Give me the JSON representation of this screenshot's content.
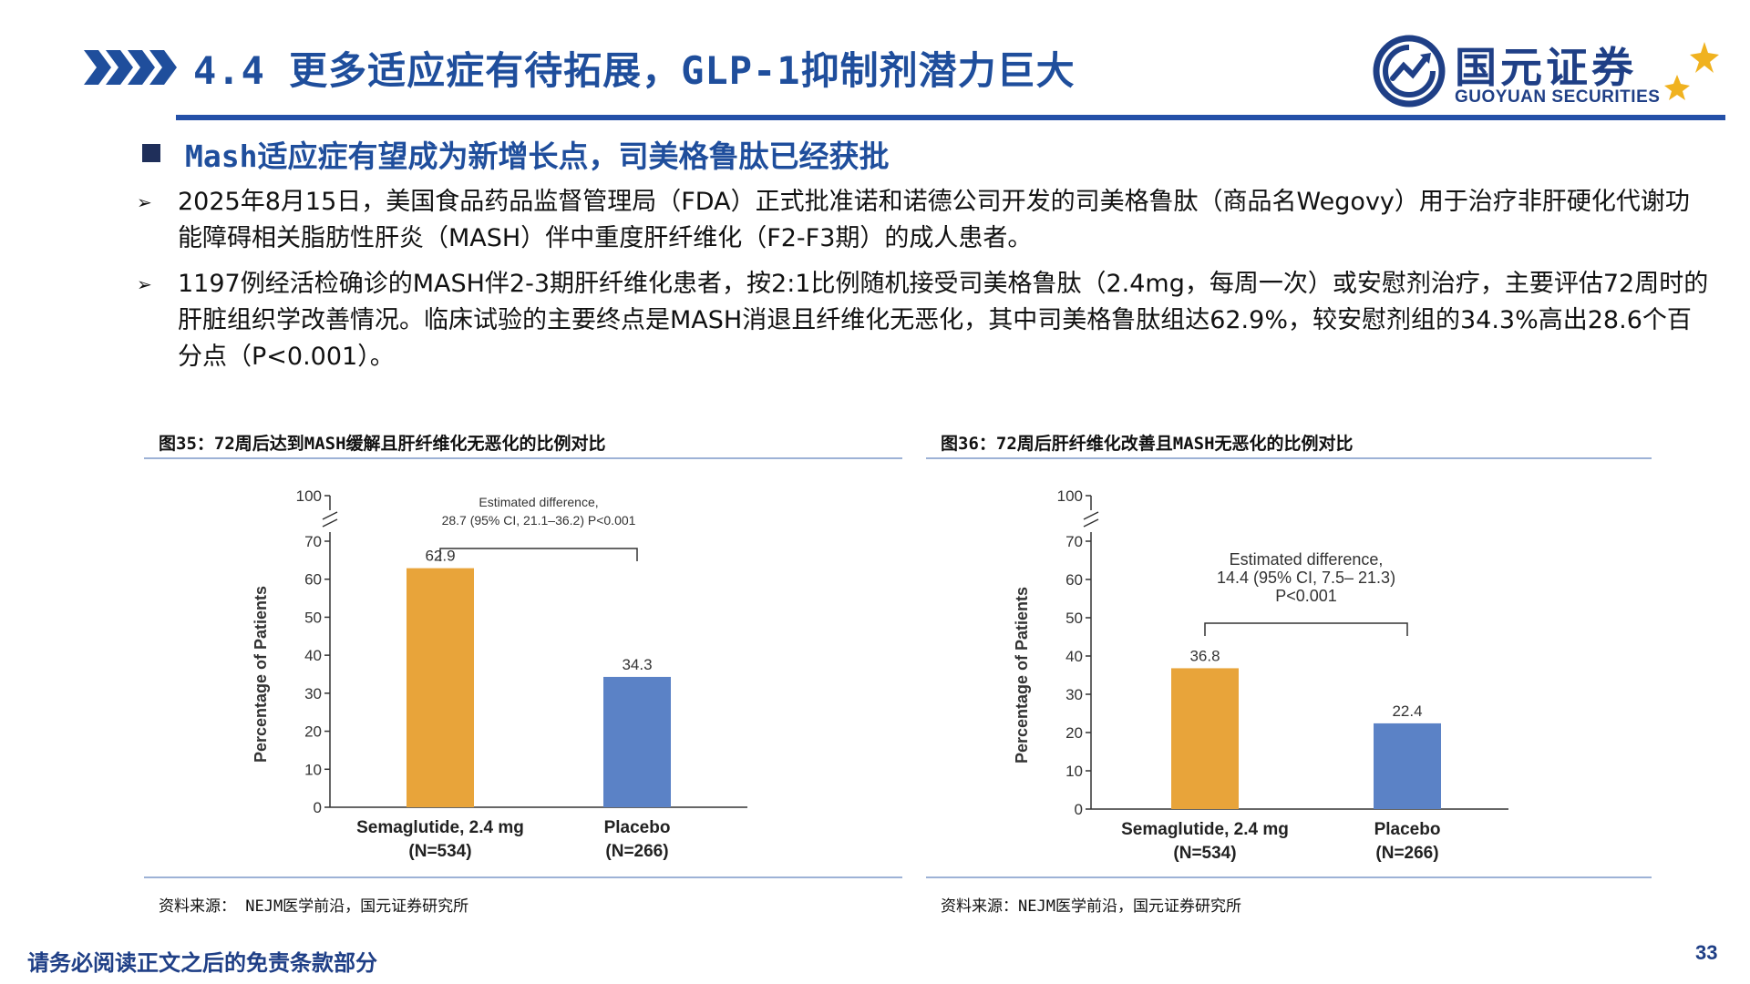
{
  "header": {
    "title": "4.4 更多适应症有待拓展，GLP-1抑制剂潜力巨大",
    "logo_cn": "国元证券",
    "logo_en": "GUOYUAN SECURITIES",
    "brand_color": "#1f4e9c"
  },
  "subtitle": "Mash适应症有望成为新增长点，司美格鲁肽已经获批",
  "bullets": [
    "2025年8月15日，美国食品药品监督管理局（FDA）正式批准诺和诺德公司开发的司美格鲁肽（商品名Wegovy）用于治疗非肝硬化代谢功能障碍相关脂肪性肝炎（MASH）伴中重度肝纤维化（F2-F3期）的成人患者。",
    "1197例经活检确诊的MASH伴2-3期肝纤维化患者，按2:1比例随机接受司美格鲁肽（2.4mg，每周一次）或安慰剂治疗，主要评估72周时的肝脏组织学改善情况。临床试验的主要终点是MASH消退且纤维化无恶化，其中司美格鲁肽组达62.9%，较安慰剂组的34.3%高出28.6个百分点（P<0.001）。"
  ],
  "figures": [
    {
      "caption": "图35：72周后达到MASH缓解且肝纤维化无恶化的比例对比",
      "source": "资料来源： NEJM医学前沿，国元证券研究所"
    },
    {
      "caption": "图36：72周后肝纤维化改善且MASH无恶化的比例对比",
      "source": "资料来源：NEJM医学前沿，国元证券研究所"
    }
  ],
  "chart_data": [
    {
      "type": "bar",
      "ylabel": "Percentage of Patients",
      "ylim": [
        0,
        100
      ],
      "y_axis_break": "between 70 and 100",
      "yticks": [
        0,
        10,
        20,
        30,
        40,
        50,
        60,
        70,
        100
      ],
      "categories": [
        "Semaglutide, 2.4 mg",
        "Placebo"
      ],
      "category_sublabels": [
        "(N=534)",
        "(N=266)"
      ],
      "values": [
        62.9,
        34.3
      ],
      "value_labels": [
        "62.9",
        "34.3"
      ],
      "bar_colors": [
        "#e8a43a",
        "#5b82c6"
      ],
      "annotation": [
        "Estimated difference,",
        "28.7 (95% CI, 21.1–36.2) P<0.001"
      ],
      "grid": false
    },
    {
      "type": "bar",
      "ylabel": "Percentage of Patients",
      "ylim": [
        0,
        100
      ],
      "y_axis_break": "between 70 and 100",
      "yticks": [
        0,
        10,
        20,
        30,
        40,
        50,
        60,
        70,
        100
      ],
      "categories": [
        "Semaglutide, 2.4 mg",
        "Placebo"
      ],
      "category_sublabels": [
        "(N=534)",
        "(N=266)"
      ],
      "values": [
        36.8,
        22.4
      ],
      "value_labels": [
        "36.8",
        "22.4"
      ],
      "bar_colors": [
        "#e8a43a",
        "#5b82c6"
      ],
      "annotation": [
        "Estimated difference,",
        "14.4 (95% CI, 7.5– 21.3)",
        "P<0.001"
      ],
      "grid": false
    }
  ],
  "footer": {
    "disclaimer": "请务必阅读正文之后的免责条款部分",
    "page": "33"
  }
}
